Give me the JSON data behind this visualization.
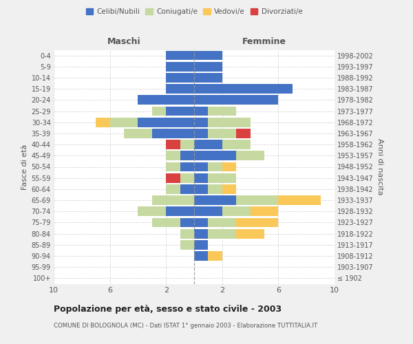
{
  "age_groups": [
    "100+",
    "95-99",
    "90-94",
    "85-89",
    "80-84",
    "75-79",
    "70-74",
    "65-69",
    "60-64",
    "55-59",
    "50-54",
    "45-49",
    "40-44",
    "35-39",
    "30-34",
    "25-29",
    "20-24",
    "15-19",
    "10-14",
    "5-9",
    "0-4"
  ],
  "birth_years": [
    "≤ 1902",
    "1903-1907",
    "1908-1912",
    "1913-1917",
    "1918-1922",
    "1923-1927",
    "1928-1932",
    "1933-1937",
    "1938-1942",
    "1943-1947",
    "1948-1952",
    "1953-1957",
    "1958-1962",
    "1963-1967",
    "1968-1972",
    "1973-1977",
    "1978-1982",
    "1983-1987",
    "1988-1992",
    "1993-1997",
    "1998-2002"
  ],
  "maschi": {
    "celibe": [
      0,
      0,
      0,
      0,
      0,
      1,
      2,
      0,
      1,
      0,
      1,
      1,
      0,
      3,
      4,
      2,
      4,
      2,
      2,
      2,
      2
    ],
    "coniugato": [
      0,
      0,
      0,
      1,
      1,
      2,
      2,
      3,
      1,
      1,
      1,
      1,
      1,
      2,
      2,
      1,
      0,
      0,
      0,
      0,
      0
    ],
    "vedovo": [
      0,
      0,
      0,
      0,
      0,
      0,
      0,
      0,
      0,
      0,
      0,
      0,
      0,
      0,
      1,
      0,
      0,
      0,
      0,
      0,
      0
    ],
    "divorziato": [
      0,
      0,
      0,
      0,
      0,
      0,
      0,
      0,
      0,
      1,
      0,
      0,
      1,
      0,
      0,
      0,
      0,
      0,
      0,
      0,
      0
    ]
  },
  "femmine": {
    "nubile": [
      0,
      0,
      1,
      1,
      1,
      1,
      2,
      3,
      1,
      1,
      1,
      3,
      2,
      1,
      1,
      1,
      6,
      7,
      2,
      2,
      2
    ],
    "coniugata": [
      0,
      0,
      0,
      0,
      2,
      2,
      2,
      3,
      1,
      2,
      1,
      2,
      2,
      2,
      3,
      2,
      0,
      0,
      0,
      0,
      0
    ],
    "vedova": [
      0,
      0,
      1,
      0,
      2,
      3,
      2,
      3,
      1,
      0,
      1,
      0,
      0,
      0,
      0,
      0,
      0,
      0,
      0,
      0,
      0
    ],
    "divorziata": [
      0,
      0,
      0,
      0,
      0,
      0,
      0,
      0,
      0,
      0,
      0,
      0,
      0,
      1,
      0,
      0,
      0,
      0,
      0,
      0,
      0
    ]
  },
  "colors": {
    "celibe": "#4472C4",
    "coniugato": "#C5D9A0",
    "vedovo": "#FAC858",
    "divorziato": "#D94040"
  },
  "xlim": 10,
  "title": "Popolazione per età, sesso e stato civile - 2003",
  "subtitle": "COMUNE DI BOLOGNOLA (MC) - Dati ISTAT 1° gennaio 2003 - Elaborazione TUTTITALIA.IT",
  "ylabel_left": "Fasce di età",
  "ylabel_right": "Anni di nascita",
  "xlabel_left": "Maschi",
  "xlabel_right": "Femmine",
  "bg_color": "#f0f0f0",
  "plot_bg_color": "#ffffff",
  "grid_color": "#cccccc",
  "text_color": "#555555",
  "xticks": [
    -10,
    -6,
    -2,
    2,
    6,
    10
  ]
}
